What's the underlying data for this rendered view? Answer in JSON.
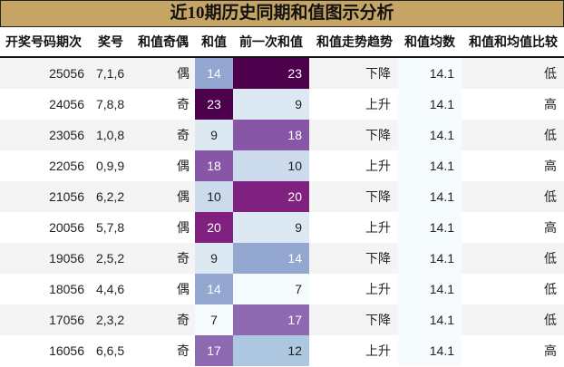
{
  "title": "近10期历史同期和值图示分析",
  "headers": [
    "开奖号码期次",
    "奖号",
    "和值奇偶",
    "和值",
    "前一次和值",
    "和值走势趋势",
    "和值均数",
    "和值和均值比较"
  ],
  "rows": [
    {
      "period": "25056",
      "numbers": "7,1,6",
      "parity": "偶",
      "sum": "14",
      "sum_color": "#94a7d0",
      "sum_text": "#ffffff",
      "prev": "23",
      "prev_color": "#4d004b",
      "prev_text": "#ffffff",
      "trend": "下降",
      "avg": "14.1",
      "compare": "低"
    },
    {
      "period": "24056",
      "numbers": "7,8,8",
      "parity": "奇",
      "sum": "23",
      "sum_color": "#4d004b",
      "sum_text": "#ffffff",
      "prev": "9",
      "prev_color": "#dce8f2",
      "prev_text": "#222222",
      "trend": "上升",
      "avg": "14.1",
      "compare": "高"
    },
    {
      "period": "23056",
      "numbers": "1,0,8",
      "parity": "奇",
      "sum": "9",
      "sum_color": "#dce8f2",
      "sum_text": "#222222",
      "prev": "18",
      "prev_color": "#8856a7",
      "prev_text": "#ffffff",
      "trend": "下降",
      "avg": "14.1",
      "compare": "低"
    },
    {
      "period": "22056",
      "numbers": "0,9,9",
      "parity": "偶",
      "sum": "18",
      "sum_color": "#8856a7",
      "sum_text": "#ffffff",
      "prev": "10",
      "prev_color": "#cbdbec",
      "prev_text": "#222222",
      "trend": "上升",
      "avg": "14.1",
      "compare": "高"
    },
    {
      "period": "21056",
      "numbers": "6,2,2",
      "parity": "偶",
      "sum": "10",
      "sum_color": "#cbdbec",
      "sum_text": "#222222",
      "prev": "20",
      "prev_color": "#81217f",
      "prev_text": "#ffffff",
      "trend": "下降",
      "avg": "14.1",
      "compare": "低"
    },
    {
      "period": "20056",
      "numbers": "5,7,8",
      "parity": "偶",
      "sum": "20",
      "sum_color": "#81217f",
      "sum_text": "#ffffff",
      "prev": "9",
      "prev_color": "#dce8f2",
      "prev_text": "#222222",
      "trend": "上升",
      "avg": "14.1",
      "compare": "高"
    },
    {
      "period": "19056",
      "numbers": "2,5,2",
      "parity": "奇",
      "sum": "9",
      "sum_color": "#dce8f2",
      "sum_text": "#222222",
      "prev": "14",
      "prev_color": "#94a7d0",
      "prev_text": "#ffffff",
      "trend": "下降",
      "avg": "14.1",
      "compare": "低"
    },
    {
      "period": "18056",
      "numbers": "4,4,6",
      "parity": "偶",
      "sum": "14",
      "sum_color": "#94a7d0",
      "sum_text": "#ffffff",
      "prev": "7",
      "prev_color": "#f5fbfc",
      "prev_text": "#222222",
      "trend": "上升",
      "avg": "14.1",
      "compare": "低"
    },
    {
      "period": "17056",
      "numbers": "2,3,2",
      "parity": "奇",
      "sum": "7",
      "sum_color": "#f5fbfc",
      "sum_text": "#222222",
      "prev": "17",
      "prev_color": "#8c69b0",
      "prev_text": "#ffffff",
      "trend": "下降",
      "avg": "14.1",
      "compare": "低"
    },
    {
      "period": "16056",
      "numbers": "6,6,5",
      "parity": "奇",
      "sum": "17",
      "sum_color": "#8c69b0",
      "sum_text": "#ffffff",
      "prev": "12",
      "prev_color": "#aec7e1",
      "prev_text": "#222222",
      "trend": "上升",
      "avg": "14.1",
      "compare": "高"
    }
  ],
  "colors": {
    "title_bg": "#c6a464",
    "row_alt_bg": "#f4f4f4",
    "avg_col_bg": "#f6fcfd"
  }
}
